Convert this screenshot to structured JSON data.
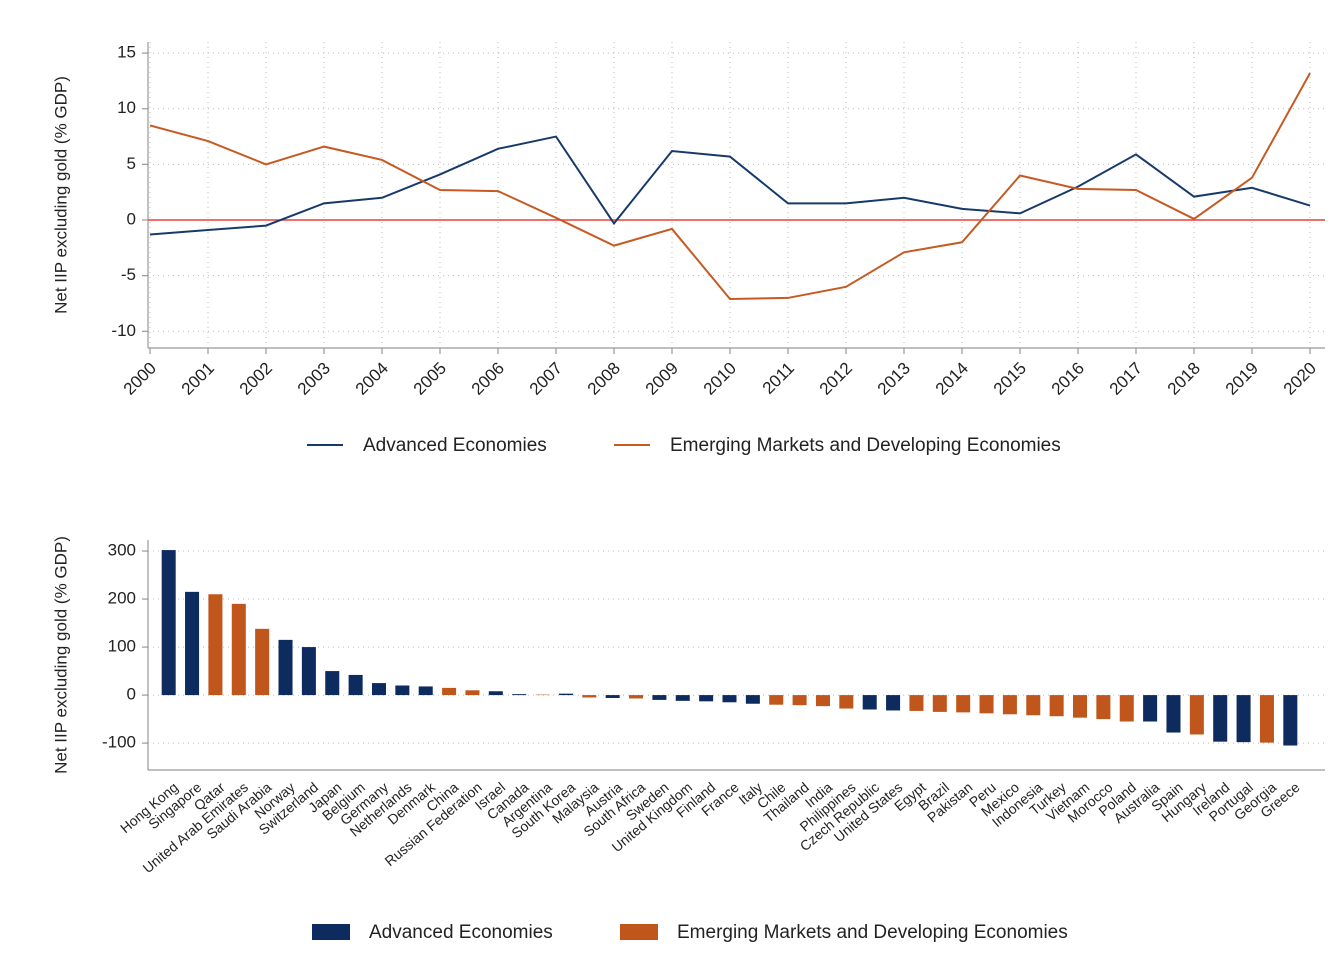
{
  "chart_data": [
    {
      "type": "line",
      "y_label": "Net IIP excluding gold (% GDP)",
      "x": [
        2000,
        2001,
        2002,
        2003,
        2004,
        2005,
        2006,
        2007,
        2008,
        2009,
        2010,
        2011,
        2012,
        2013,
        2014,
        2015,
        2016,
        2017,
        2018,
        2019,
        2020
      ],
      "xlim": [
        2000,
        2020
      ],
      "xticks": [
        2000,
        2001,
        2002,
        2003,
        2004,
        2005,
        2006,
        2007,
        2008,
        2009,
        2010,
        2011,
        2012,
        2013,
        2014,
        2015,
        2016,
        2017,
        2018,
        2019,
        2020
      ],
      "ylim": [
        -11.5,
        16
      ],
      "yticks": [
        -10,
        -5,
        0,
        5,
        10,
        15
      ],
      "grid": true,
      "legend": "bottom",
      "hline": {
        "value": 0,
        "color": "#e8413c"
      },
      "series": [
        {
          "name": "Advanced Economies",
          "color": "#173a6b",
          "values": [
            -1.3,
            -0.9,
            -0.5,
            1.5,
            2.0,
            4.1,
            6.4,
            7.5,
            -0.3,
            6.2,
            5.7,
            1.5,
            1.5,
            2.0,
            1.0,
            0.6,
            3.0,
            5.9,
            2.1,
            2.9,
            1.3
          ]
        },
        {
          "name": "Emerging Markets and Developing Economies",
          "color": "#c65a22",
          "values": [
            8.5,
            7.1,
            5.0,
            6.6,
            5.4,
            2.7,
            2.6,
            0.2,
            -2.3,
            -0.8,
            -7.1,
            -7.0,
            -6.0,
            -2.9,
            -2.0,
            4.0,
            2.8,
            2.7,
            0.1,
            3.8,
            13.2
          ]
        }
      ]
    },
    {
      "type": "bar",
      "y_label": "Net IIP excluding gold (% GDP)",
      "categories": [
        "Hong Kong",
        "Singapore",
        "Qatar",
        "United Arab Emirates",
        "Saudi Arabia",
        "Norway",
        "Switzerland",
        "Japan",
        "Belgium",
        "Germany",
        "Netherlands",
        "Denmark",
        "China",
        "Russian Federation",
        "Israel",
        "Canada",
        "Argentina",
        "South Korea",
        "Malaysia",
        "Austria",
        "South Africa",
        "Sweden",
        "United Kingdom",
        "Finland",
        "France",
        "Italy",
        "Chile",
        "Thailand",
        "India",
        "Philippines",
        "Czech Republic",
        "United States",
        "Egypt",
        "Brazil",
        "Pakistan",
        "Peru",
        "Mexico",
        "Indonesia",
        "Turkey",
        "Vietnam",
        "Morocco",
        "Poland",
        "Australia",
        "Spain",
        "Hungary",
        "Ireland",
        "Portugal",
        "Georgia",
        "Greece"
      ],
      "ylim": [
        -156,
        323
      ],
      "yticks": [
        -100,
        0,
        100,
        200,
        300
      ],
      "grid": true,
      "legend": "bottom",
      "series": [
        {
          "name": "Advanced Economies",
          "color": "#0d2b5e",
          "values": [
            302,
            215,
            null,
            null,
            null,
            115,
            100,
            50,
            42,
            25,
            20,
            18,
            null,
            null,
            8,
            2,
            null,
            3,
            null,
            -6,
            null,
            -10,
            -12,
            -13,
            -15,
            -18,
            null,
            null,
            null,
            null,
            -30,
            -32,
            null,
            null,
            null,
            null,
            null,
            null,
            null,
            null,
            null,
            null,
            -55,
            -78,
            null,
            -97,
            -98,
            null,
            -105
          ]
        },
        {
          "name": "Emerging Markets and Developing Economies",
          "color": "#c0561b",
          "values": [
            null,
            null,
            210,
            190,
            138,
            null,
            null,
            null,
            null,
            null,
            null,
            null,
            15,
            10,
            null,
            null,
            1,
            null,
            -5,
            null,
            -7,
            null,
            null,
            null,
            null,
            null,
            -20,
            -21,
            -23,
            -28,
            null,
            null,
            -33,
            -35,
            -36,
            -38,
            -40,
            -42,
            -44,
            -47,
            -50,
            -55,
            null,
            null,
            -82,
            null,
            null,
            -99,
            null
          ]
        }
      ]
    }
  ]
}
